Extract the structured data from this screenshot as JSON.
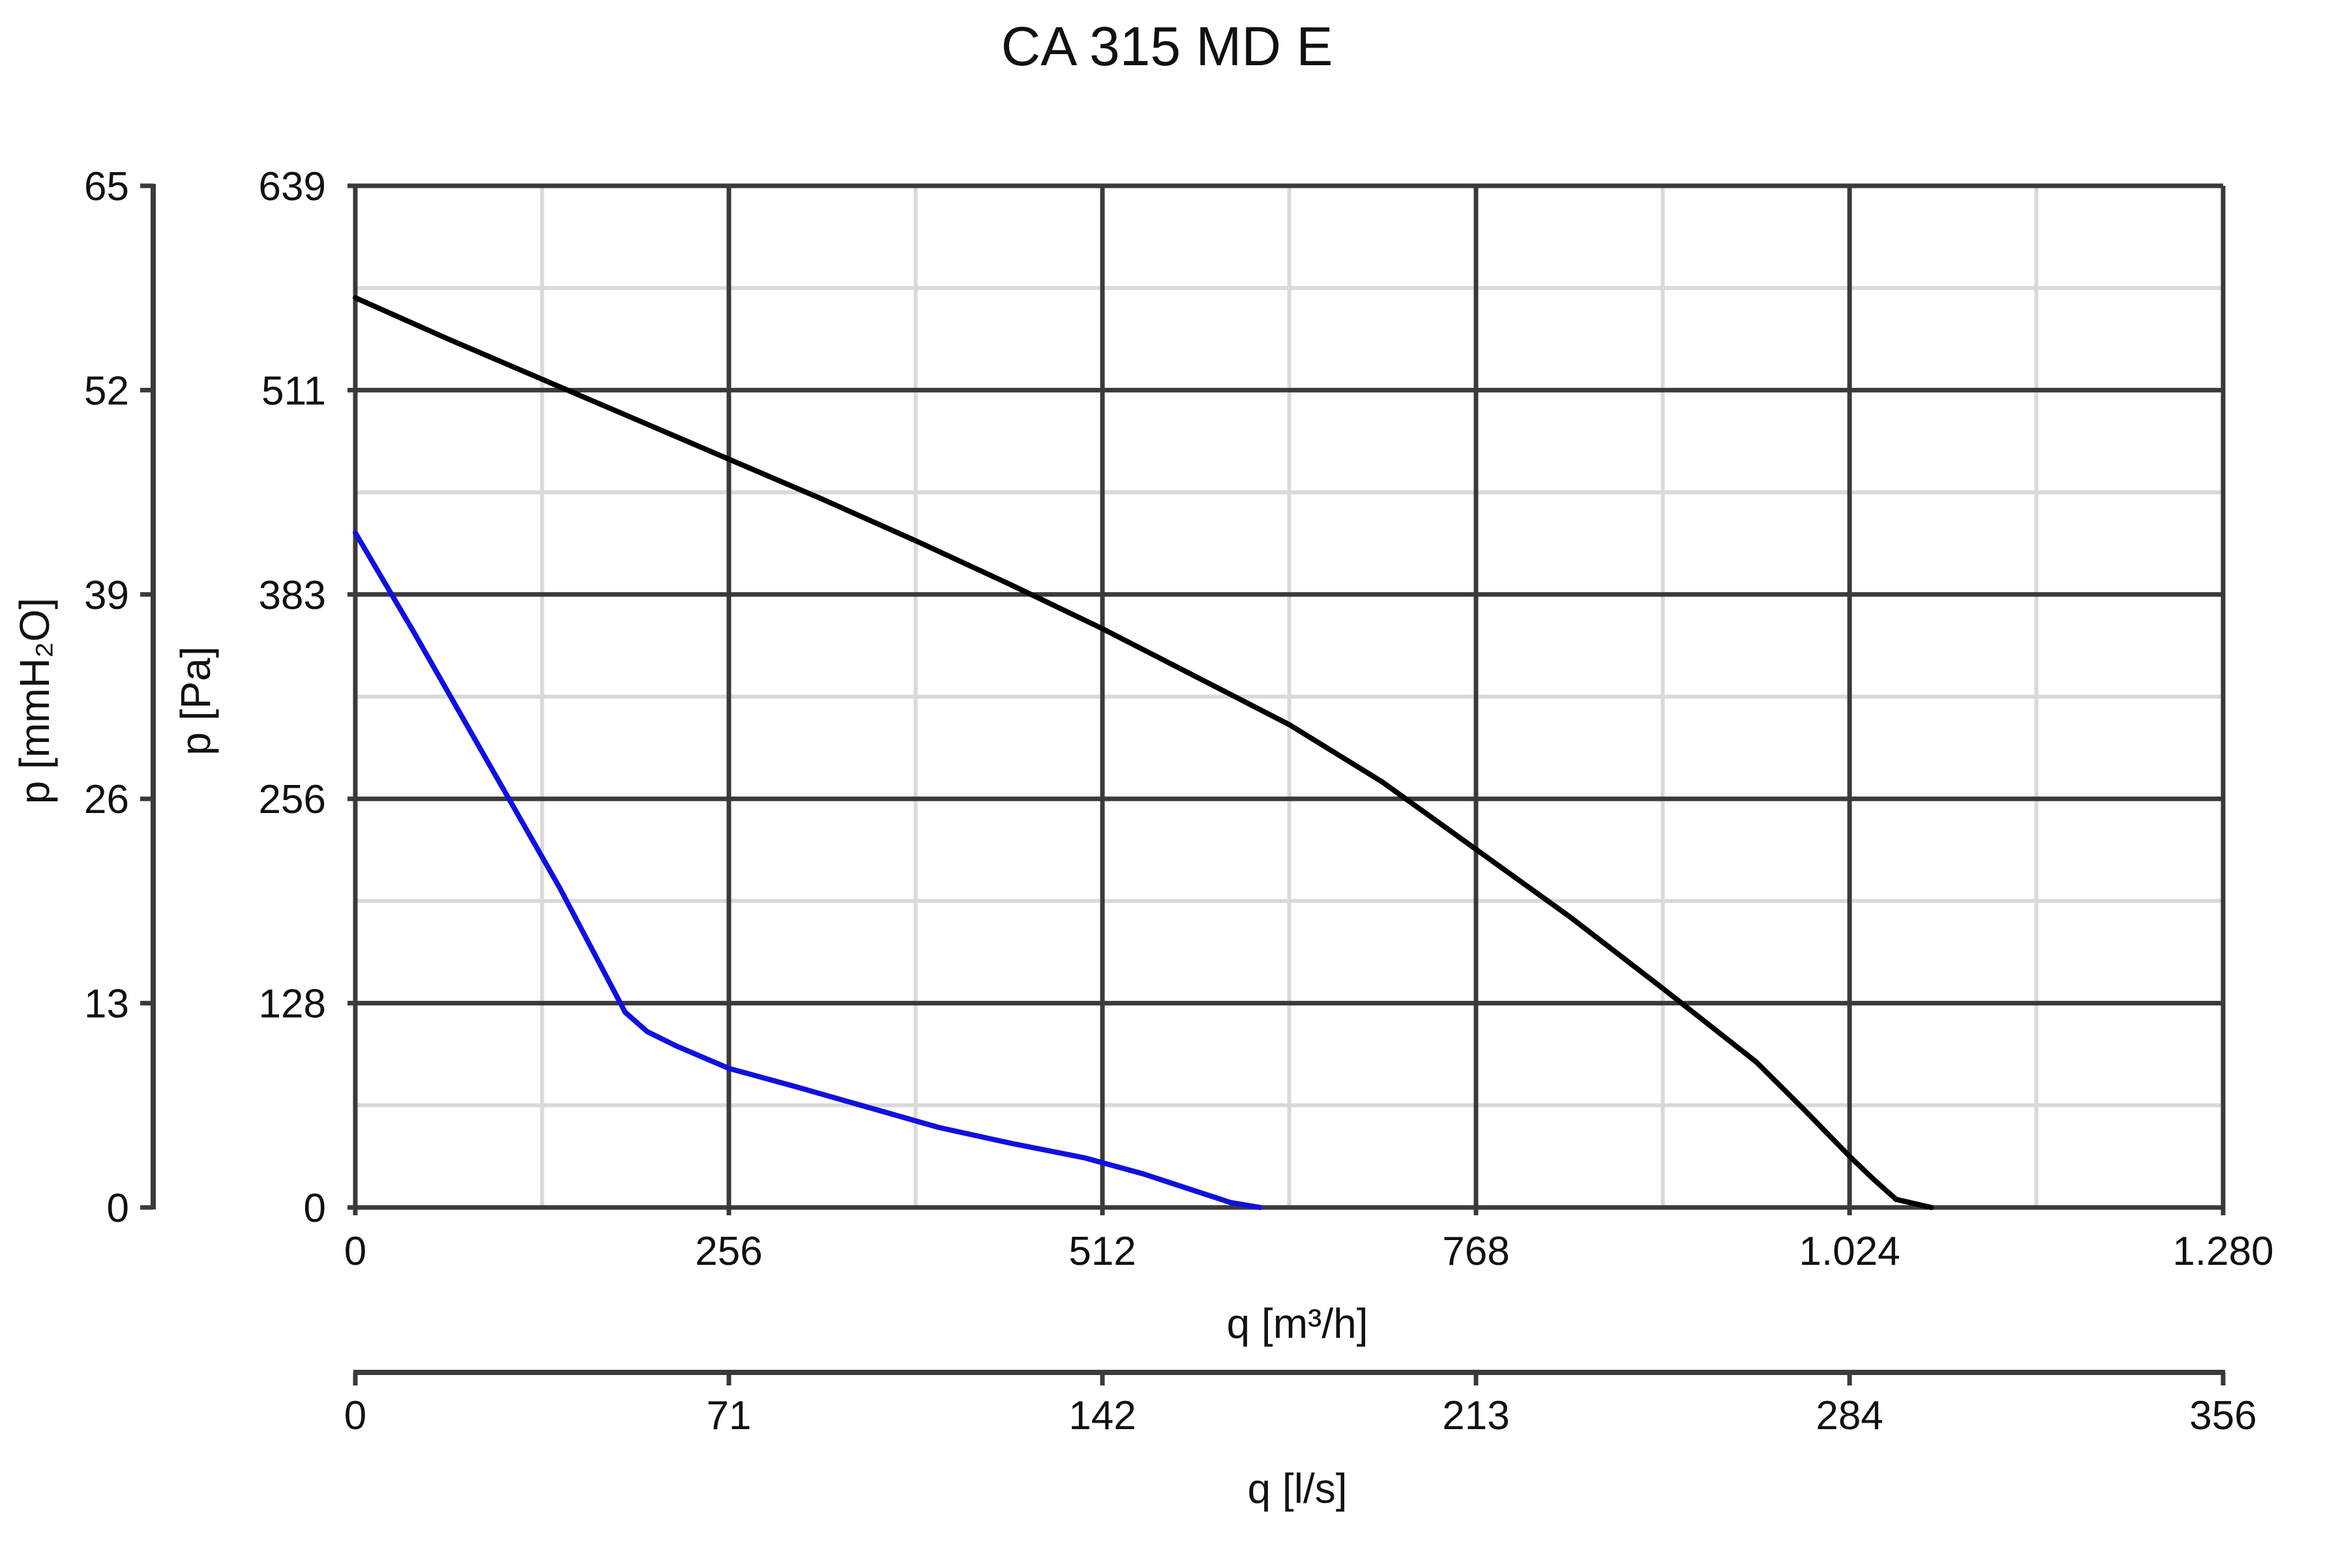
{
  "chart_data": {
    "type": "line",
    "title": "CA 315 MD E",
    "xlabel": "q [m³/h]",
    "x2label": "q [l/s]",
    "ylabel": "p [Pa]",
    "y2label": "p [mmH₂O]",
    "xlim": [
      0,
      1280
    ],
    "ylim": [
      0,
      639
    ],
    "grid": true,
    "x_ticks": [
      0,
      256,
      512,
      768,
      1024,
      1280
    ],
    "x_tick_labels": [
      "0",
      "256",
      "512",
      "768",
      "1.024",
      "1.280"
    ],
    "x2_tick_labels": [
      "0",
      "71",
      "142",
      "213",
      "284",
      "356"
    ],
    "y_tick_labels": [
      "0",
      "128",
      "256",
      "383",
      "511",
      "639"
    ],
    "y2_tick_labels": [
      "0",
      "13",
      "26",
      "39",
      "52",
      "65"
    ],
    "series": [
      {
        "color": "#000000",
        "x": [
          0,
          64,
          128,
          192,
          256,
          320,
          384,
          448,
          512,
          576,
          640,
          704,
          768,
          832,
          896,
          960,
          992,
          1024,
          1040,
          1056,
          1080
        ],
        "y": [
          569,
          543,
          518,
          493,
          468,
          443,
          417,
          390,
          362,
          332,
          302,
          266,
          224,
          182,
          137,
          91,
          62,
          32,
          18,
          5,
          0
        ]
      },
      {
        "color": "#1010e0",
        "x": [
          0,
          40,
          90,
          140,
          185,
          200,
          220,
          256,
          300,
          350,
          400,
          450,
          500,
          540,
          570,
          600,
          620
        ],
        "y": [
          422,
          360,
          280,
          200,
          122,
          110,
          101,
          87,
          76,
          63,
          50,
          40,
          31,
          21,
          12,
          3,
          0
        ]
      }
    ]
  }
}
